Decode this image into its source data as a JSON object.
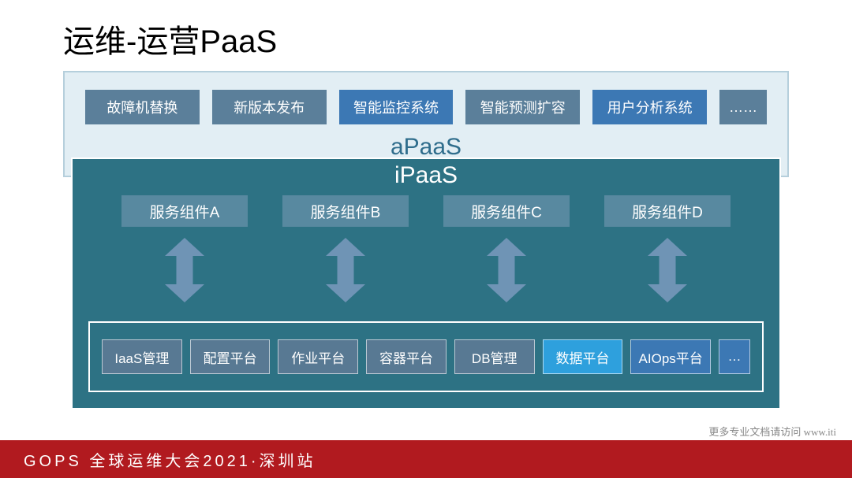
{
  "title": "运维-运营PaaS",
  "colors": {
    "apaas_bg": "#e2eef4",
    "apaas_border": "#b5cfdc",
    "apaas_label": "#2f6d8c",
    "box_steel": "#5b7f9a",
    "box_blue": "#3c78b4",
    "box_steel_dark": "#597a92",
    "ipaas_bg": "#2d7284",
    "component_bg": "#5889a0",
    "arrow_fill": "#6f94b5",
    "bottom_steel": "#587993",
    "bottom_bright": "#2ea0dd",
    "bottom_blue": "#3c78b4",
    "footer_bg": "#b11a1f"
  },
  "apaas": {
    "label": "aPaaS",
    "items": [
      {
        "label": "故障机替换",
        "color": "#5b7f9a"
      },
      {
        "label": "新版本发布",
        "color": "#5b7f9a"
      },
      {
        "label": "智能监控系统",
        "color": "#3c78b4"
      },
      {
        "label": "智能预测扩容",
        "color": "#5b7f9a"
      },
      {
        "label": "用户分析系统",
        "color": "#3c78b4"
      },
      {
        "label": "……",
        "color": "#5b7f9a"
      }
    ]
  },
  "ipaas": {
    "label": "iPaaS",
    "components": [
      {
        "label": "服务组件A"
      },
      {
        "label": "服务组件B"
      },
      {
        "label": "服务组件C"
      },
      {
        "label": "服务组件D"
      }
    ],
    "bottom": [
      {
        "label": "IaaS管理",
        "color": "#587993"
      },
      {
        "label": "配置平台",
        "color": "#587993"
      },
      {
        "label": "作业平台",
        "color": "#587993"
      },
      {
        "label": "容器平台",
        "color": "#587993"
      },
      {
        "label": "DB管理",
        "color": "#587993"
      },
      {
        "label": "数据平台",
        "color": "#2ea0dd"
      },
      {
        "label": "AIOps平台",
        "color": "#3c78b4"
      },
      {
        "label": "…",
        "color": "#3c78b4",
        "small": true
      }
    ]
  },
  "arrow": {
    "width": 50,
    "height": 82
  },
  "footer": {
    "left": "GOPS 全球运维大会2021·深圳站",
    "right": "更多专业文档请访问  www.iti"
  }
}
